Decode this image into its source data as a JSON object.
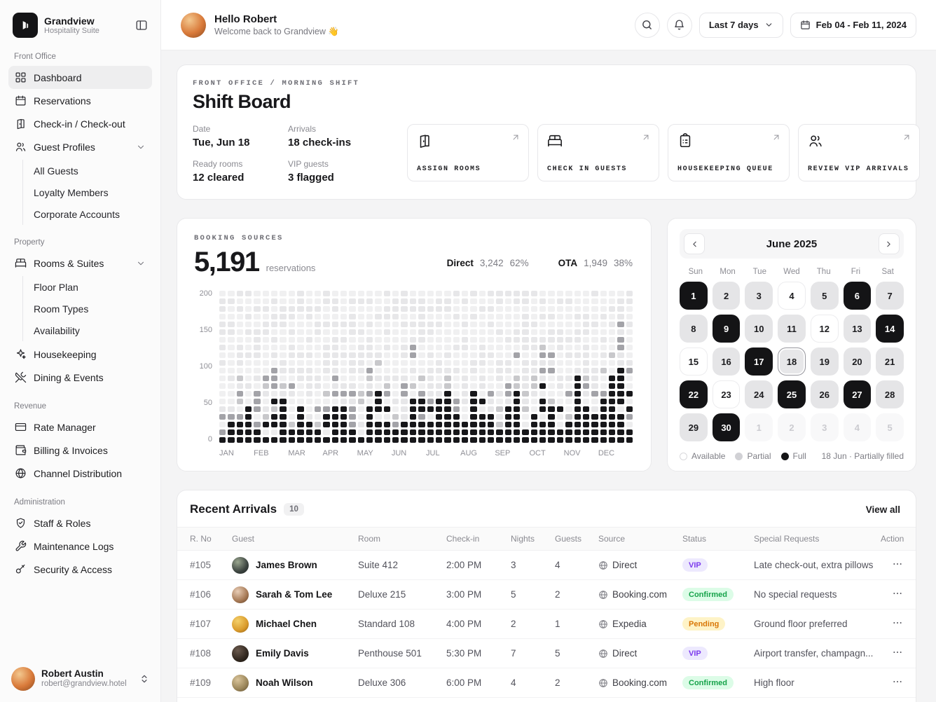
{
  "brand": {
    "name": "Grandview",
    "tagline": "Hospitality Suite"
  },
  "sidebar": {
    "sections": [
      {
        "label": "Front Office",
        "items": [
          {
            "label": "Dashboard",
            "icon": "grid-icon",
            "active": true
          },
          {
            "label": "Reservations",
            "icon": "calendar-icon"
          },
          {
            "label": "Check-in / Check-out",
            "icon": "door-icon"
          },
          {
            "label": "Guest Profiles",
            "icon": "users-icon",
            "expandable": true,
            "children": [
              "All Guests",
              "Loyalty Members",
              "Corporate Accounts"
            ]
          }
        ]
      },
      {
        "label": "Property",
        "items": [
          {
            "label": "Rooms & Suites",
            "icon": "bed-icon",
            "expandable": true,
            "children": [
              "Floor Plan",
              "Room Types",
              "Availability"
            ]
          },
          {
            "label": "Housekeeping",
            "icon": "sparkles-icon"
          },
          {
            "label": "Dining & Events",
            "icon": "utensils-icon"
          }
        ]
      },
      {
        "label": "Revenue",
        "items": [
          {
            "label": "Rate Manager",
            "icon": "credit-card-icon"
          },
          {
            "label": "Billing & Invoices",
            "icon": "wallet-icon"
          },
          {
            "label": "Channel Distribution",
            "icon": "globe-icon"
          }
        ]
      },
      {
        "label": "Administration",
        "items": [
          {
            "label": "Staff & Roles",
            "icon": "shield-check-icon"
          },
          {
            "label": "Maintenance Logs",
            "icon": "wrench-icon"
          },
          {
            "label": "Security & Access",
            "icon": "key-icon"
          }
        ]
      }
    ],
    "user": {
      "name": "Robert Austin",
      "email": "robert@grandview.hotel"
    }
  },
  "header": {
    "greeting": "Hello Robert",
    "subtitle": "Welcome back to Grandview 👋",
    "range_label": "Last 7 days",
    "date_range": "Feb 04 - Feb 11, 2024"
  },
  "shift_board": {
    "eyebrow": "FRONT OFFICE / MORNING SHIFT",
    "title": "Shift Board",
    "stats": [
      {
        "label": "Date",
        "value": "Tue, Jun 18"
      },
      {
        "label": "Arrivals",
        "value": "18 check-ins"
      },
      {
        "label": "Ready rooms",
        "value": "12 cleared"
      },
      {
        "label": "VIP guests",
        "value": "3 flagged"
      }
    ],
    "actions": [
      {
        "label": "ASSIGN ROOMS",
        "icon": "door-icon"
      },
      {
        "label": "CHECK IN GUESTS",
        "icon": "bed-icon"
      },
      {
        "label": "HOUSEKEEPING QUEUE",
        "icon": "clipboard-icon"
      },
      {
        "label": "REVIEW VIP ARRIVALS",
        "icon": "users-icon"
      }
    ]
  },
  "chart_data": {
    "type": "waffle",
    "title": "BOOKING SOURCES",
    "total": "5,191",
    "unit": "reservations",
    "legend": [
      {
        "label": "Direct",
        "value": "3,242",
        "pct": "62%"
      },
      {
        "label": "OTA",
        "value": "1,949",
        "pct": "38%"
      }
    ],
    "x_categories": [
      "JAN",
      "FEB",
      "MAR",
      "APR",
      "MAY",
      "JUN",
      "JUL",
      "AUG",
      "SEP",
      "OCT",
      "NOV",
      "DEC"
    ],
    "y_ticks": [
      "200",
      "150",
      "100",
      "50",
      "0"
    ],
    "ylim": [
      0,
      200
    ],
    "rows": 20,
    "columns_per_month": 4,
    "full_heights": [
      10,
      30,
      40,
      45,
      25,
      30,
      65,
      60,
      30,
      45,
      25,
      20,
      35,
      50,
      45,
      30,
      20,
      45,
      70,
      50,
      15,
      25,
      55,
      65,
      45,
      60,
      70,
      35,
      30,
      70,
      55,
      40,
      25,
      45,
      65,
      30,
      40,
      75,
      60,
      45,
      30,
      85,
      50,
      35,
      55,
      90,
      100,
      70
    ],
    "partial_heights": [
      60,
      70,
      100,
      80,
      70,
      90,
      95,
      80,
      75,
      70,
      60,
      55,
      80,
      90,
      70,
      65,
      70,
      100,
      105,
      75,
      60,
      75,
      130,
      90,
      85,
      95,
      100,
      70,
      75,
      110,
      90,
      75,
      70,
      90,
      115,
      65,
      85,
      130,
      120,
      80,
      70,
      120,
      90,
      70,
      95,
      130,
      160,
      100
    ]
  },
  "calendar": {
    "month_label": "June 2025",
    "weekdays": [
      "Sun",
      "Mon",
      "Tue",
      "Wed",
      "Thu",
      "Fri",
      "Sat"
    ],
    "day_states": [
      "full",
      "partial",
      "partial",
      "available",
      "partial",
      "full",
      "partial",
      "partial",
      "full",
      "partial",
      "partial",
      "available",
      "partial",
      "full",
      "available",
      "partial",
      "full",
      "selected",
      "partial",
      "partial",
      "partial",
      "full",
      "available",
      "partial",
      "full",
      "partial",
      "full",
      "partial",
      "partial",
      "full"
    ],
    "next_month_days": [
      "1",
      "2",
      "3",
      "4",
      "5"
    ],
    "legend": [
      {
        "label": "Available",
        "state": "available"
      },
      {
        "label": "Partial",
        "state": "partial"
      },
      {
        "label": "Full",
        "state": "full"
      }
    ],
    "footnote": "18 Jun · Partially filled"
  },
  "arrivals": {
    "title": "Recent Arrivals",
    "count": "10",
    "view_all": "View all",
    "columns": [
      "R. No",
      "Guest",
      "Room",
      "Check-in",
      "Nights",
      "Guests",
      "Source",
      "Status",
      "Special Requests",
      "Action"
    ],
    "rows": [
      {
        "no": "#105",
        "guest": "James Brown",
        "room": "Suite 412",
        "checkin": "2:00 PM",
        "nights": "3",
        "guests": "4",
        "source": "Direct",
        "status": "VIP",
        "status_type": "vip",
        "requests": "Late check-out, extra pillows"
      },
      {
        "no": "#106",
        "guest": "Sarah & Tom Lee",
        "room": "Deluxe 215",
        "checkin": "3:00 PM",
        "nights": "5",
        "guests": "2",
        "source": "Booking.com",
        "status": "Confirmed",
        "status_type": "confirmed",
        "requests": "No special requests"
      },
      {
        "no": "#107",
        "guest": "Michael Chen",
        "room": "Standard 108",
        "checkin": "4:00 PM",
        "nights": "2",
        "guests": "1",
        "source": "Expedia",
        "status": "Pending",
        "status_type": "pending",
        "requests": "Ground floor preferred"
      },
      {
        "no": "#108",
        "guest": "Emily Davis",
        "room": "Penthouse 501",
        "checkin": "5:30 PM",
        "nights": "7",
        "guests": "5",
        "source": "Direct",
        "status": "VIP",
        "status_type": "vip",
        "requests": "Airport transfer, champagn..."
      },
      {
        "no": "#109",
        "guest": "Noah Wilson",
        "room": "Deluxe 306",
        "checkin": "6:00 PM",
        "nights": "4",
        "guests": "2",
        "source": "Booking.com",
        "status": "Confirmed",
        "status_type": "confirmed",
        "requests": "High floor"
      },
      {
        "no": "",
        "guest": "",
        "room": "",
        "checkin": "",
        "nights": "",
        "guests": "",
        "source": "",
        "status": "",
        "status_type": "confirmed",
        "requests": "",
        "partial": true
      }
    ]
  },
  "colors": {
    "accent": "#141416",
    "vip": "#7c3aed",
    "confirmed": "#16a34a",
    "pending": "#d97706",
    "waffle_full": "#17171a",
    "waffle_partial": "#a3a3a8",
    "waffle_empty": "#ededee"
  }
}
